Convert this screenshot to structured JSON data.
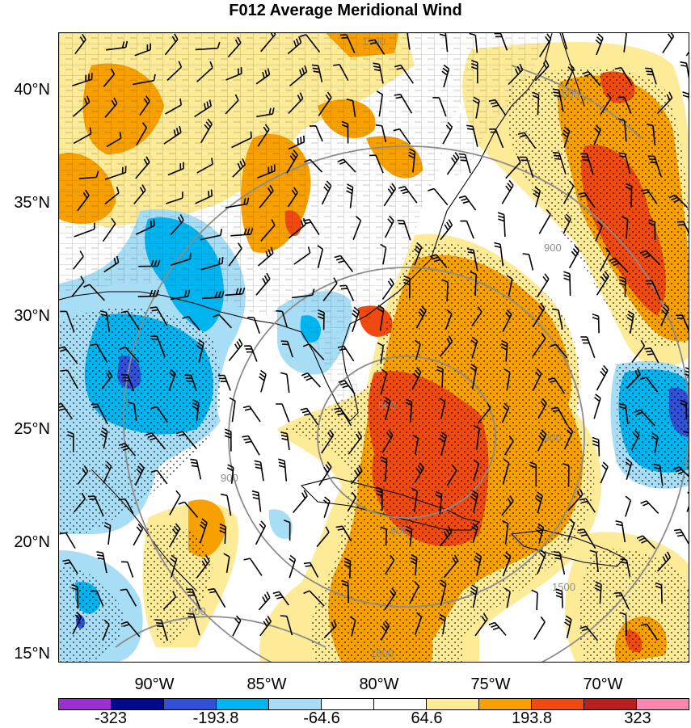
{
  "title": "F012 Average Meridional Wind",
  "lat_labels": [
    "40°N",
    "35°N",
    "30°N",
    "25°N",
    "20°N",
    "15°N"
  ],
  "lon_labels": [
    "90°W",
    "85°W",
    "80°W",
    "75°W",
    "70°W"
  ],
  "colorbar": {
    "colors": [
      "#9b30d0",
      "#000a8f",
      "#3050d8",
      "#00b4f0",
      "#a8def5",
      "#ffffff",
      "#ffffff",
      "#fdeb98",
      "#f8a000",
      "#f04a10",
      "#b82020",
      "#f888b0"
    ],
    "labels": [
      "-323",
      "-193.8",
      "-64.6",
      "64.6",
      "193.8",
      "323"
    ]
  },
  "contour_labels": [
    "1500",
    "1500",
    "900",
    "900",
    "1500",
    "900",
    "900",
    "500",
    "900",
    "1500"
  ]
}
